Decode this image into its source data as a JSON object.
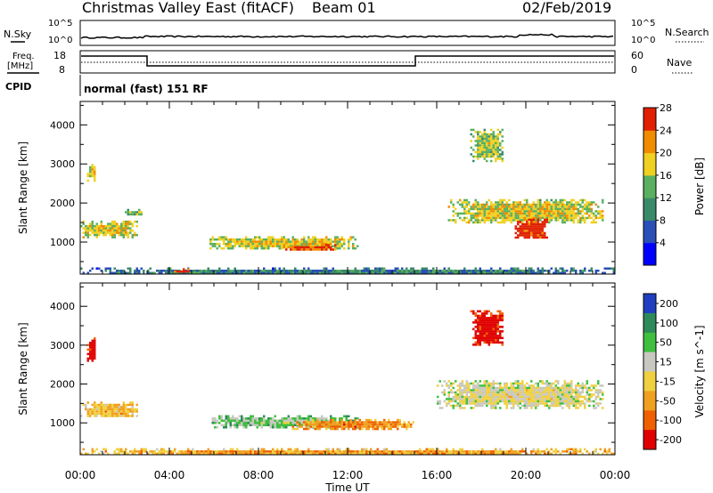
{
  "header": {
    "title": "Christmas Valley East (fitACF)",
    "beam": "Beam 01",
    "date": "02/Feb/2019"
  },
  "top_panels": {
    "nsky_label": "N.Sky",
    "nsky_ticks": [
      "10^5",
      "10^0"
    ],
    "nsearch_label": "N.Search",
    "nsearch_ticks": [
      "10^5",
      "10^0"
    ],
    "freq_label_line1": "Freq.",
    "freq_label_line2": "[MHz]",
    "freq_ticks": [
      "18",
      "8"
    ],
    "nave_label": "Nave",
    "nave_ticks": [
      "60",
      "0"
    ],
    "cpid_label": "CPID",
    "cpid_text": "normal (fast) 151 RF"
  },
  "chart_data": [
    {
      "type": "heatmap",
      "title": "",
      "xlabel": "Time UT",
      "ylabel": "Slant Range [km]",
      "x_ticks": [
        "00:00",
        "04:00",
        "08:00",
        "12:00",
        "16:00",
        "20:00",
        "00:00"
      ],
      "xlim": [
        0,
        24
      ],
      "y_ticks": [
        "1000",
        "2000",
        "3000",
        "4000"
      ],
      "ylim": [
        180,
        4600
      ],
      "colorbar": {
        "label": "Power [dB]",
        "ticks": [
          "4",
          "8",
          "12",
          "16",
          "20",
          "24",
          "28"
        ],
        "colors": [
          "#0000ff",
          "#2a4fb8",
          "#3a8a6a",
          "#5ab060",
          "#f0d020",
          "#f08c00",
          "#e02000"
        ]
      },
      "regions": [
        {
          "t0": 0.0,
          "t1": 2.6,
          "r0": 1150,
          "r1": 1550,
          "level": 3.5
        },
        {
          "t0": 0.3,
          "t1": 0.7,
          "r0": 2600,
          "r1": 3000,
          "level": 3.5
        },
        {
          "t0": 2.0,
          "t1": 2.8,
          "r0": 1700,
          "r1": 1850,
          "level": 2.5
        },
        {
          "t0": 5.8,
          "t1": 12.5,
          "r0": 850,
          "r1": 1150,
          "level": 3.5
        },
        {
          "t0": 9.0,
          "t1": 11.5,
          "r0": 800,
          "r1": 950,
          "level": 5.5
        },
        {
          "t0": 16.5,
          "t1": 23.5,
          "r0": 1500,
          "r1": 2100,
          "level": 3.5
        },
        {
          "t0": 19.5,
          "t1": 21.0,
          "r0": 1100,
          "r1": 1600,
          "level": 6.0
        },
        {
          "t0": 17.5,
          "t1": 19.0,
          "r0": 3100,
          "r1": 3900,
          "level": 3.0
        },
        {
          "t0": 0.0,
          "t1": 24.0,
          "r0": 200,
          "r1": 350,
          "level": 1.5
        },
        {
          "t0": 4.2,
          "t1": 5.0,
          "r0": 220,
          "r1": 330,
          "level": 6.0
        }
      ]
    },
    {
      "type": "heatmap",
      "title": "",
      "xlabel": "Time UT",
      "ylabel": "Slant Range [km]",
      "x_ticks": [
        "00:00",
        "04:00",
        "08:00",
        "12:00",
        "16:00",
        "20:00",
        "00:00"
      ],
      "xlim": [
        0,
        24
      ],
      "y_ticks": [
        "1000",
        "2000",
        "3000",
        "4000"
      ],
      "ylim": [
        180,
        4600
      ],
      "colorbar": {
        "label": "Velocity [m s^-1]",
        "ticks": [
          "200",
          "100",
          "50",
          "15",
          "-15",
          "-50",
          "-100",
          "-200"
        ],
        "colors": [
          "#1f3fc0",
          "#2e8a5a",
          "#3fbf3f",
          "#c8c8c0",
          "#f0d040",
          "#f0a020",
          "#f06000",
          "#e00000"
        ]
      },
      "regions": [
        {
          "t0": 0.0,
          "t1": 2.6,
          "r0": 1150,
          "r1": 1550,
          "level": 4.0
        },
        {
          "t0": 0.3,
          "t1": 0.7,
          "r0": 2600,
          "r1": 3200,
          "level": 7.0
        },
        {
          "t0": 5.8,
          "t1": 12.5,
          "r0": 900,
          "r1": 1200,
          "level": 2.0
        },
        {
          "t0": 9.5,
          "t1": 15.0,
          "r0": 850,
          "r1": 1100,
          "level": 5.0
        },
        {
          "t0": 16.0,
          "t1": 23.5,
          "r0": 1400,
          "r1": 2100,
          "level": 3.0
        },
        {
          "t0": 17.5,
          "t1": 19.0,
          "r0": 3000,
          "r1": 3900,
          "level": 7.0
        },
        {
          "t0": 0.0,
          "t1": 24.0,
          "r0": 200,
          "r1": 350,
          "level": 4.5
        }
      ]
    }
  ]
}
